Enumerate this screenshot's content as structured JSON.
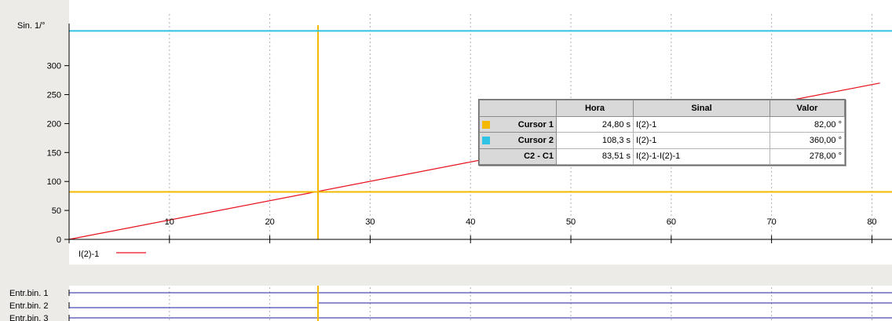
{
  "chart_data": {
    "type": "line",
    "ylabel": "Sin. 1/°",
    "xlim": [
      0,
      82
    ],
    "ylim": [
      0,
      370
    ],
    "x_ticks": [
      10,
      20,
      30,
      40,
      50,
      60,
      70,
      80
    ],
    "y_ticks": [
      0,
      50,
      100,
      150,
      200,
      250,
      300
    ],
    "grid": true,
    "series": [
      {
        "name": "I(2)-1",
        "color": "#e8101a",
        "x": [
          0,
          80.8
        ],
        "y": [
          0,
          270
        ]
      }
    ],
    "cursors": [
      {
        "name": "Cursor 1",
        "time": 24.8,
        "value": 82.0,
        "color": "#f5b800"
      },
      {
        "name": "Cursor 2",
        "time": 108.3,
        "value": 360.0,
        "color": "#2fc3e6"
      }
    ],
    "binary_channels": [
      {
        "label": "Entr.bin. 1",
        "transitions": []
      },
      {
        "label": "Entr.bin. 2",
        "transitions": [
          24.8
        ]
      },
      {
        "label": "Entr.bin. 3",
        "transitions": []
      }
    ]
  },
  "legend": {
    "label": "I(2)-1",
    "color": "#e8101a"
  },
  "cursor_table": {
    "headers": [
      "",
      "Hora",
      "Sinal",
      "Valor"
    ],
    "rows": [
      {
        "label": "Cursor 1",
        "color": "#f5b800",
        "hora": "24,80 s",
        "sinal": "I(2)-1",
        "valor": "82,00 °"
      },
      {
        "label": "Cursor 2",
        "color": "#2fc3e6",
        "hora": "108,3 s",
        "sinal": "I(2)-1",
        "valor": "360,00 °"
      },
      {
        "label": "C2 - C1",
        "color": "",
        "hora": "83,51 s",
        "sinal": "I(2)-1-I(2)-1",
        "valor": "278,00 °"
      }
    ]
  },
  "colors": {
    "plot_bg": "#ffffff",
    "frame_bg": "#ecebe8",
    "binary_line": "#1c1c9c",
    "grid": "#b0b0b0"
  }
}
